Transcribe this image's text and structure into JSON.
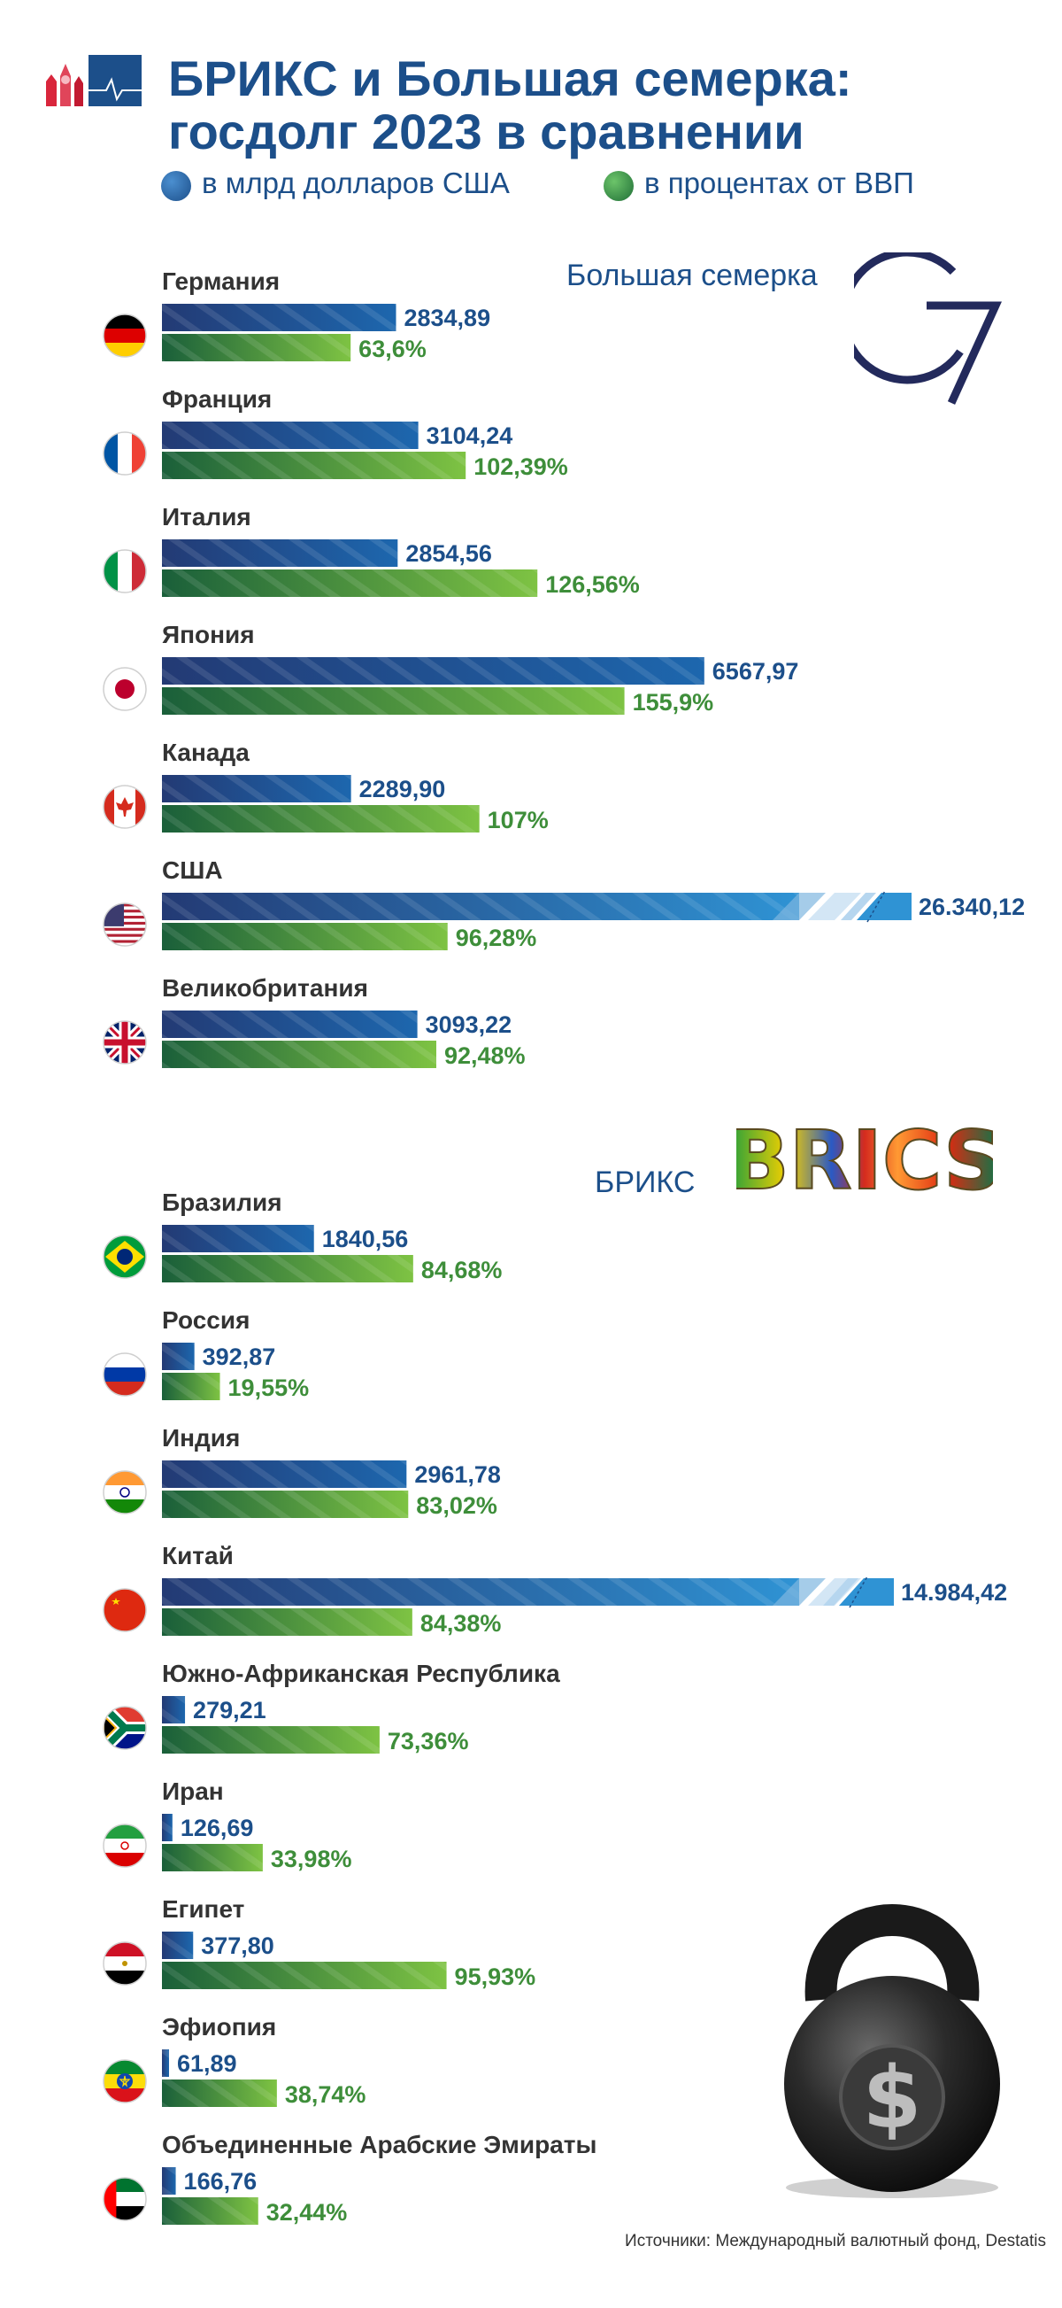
{
  "header": {
    "title_line1": "БРИКС и Большая семерка:",
    "title_line2": "госдолг 2023 в сравнении"
  },
  "legend": {
    "usd": {
      "label": "в млрд долларов США",
      "color": "#1c4f8a"
    },
    "gdp": {
      "label": "в процентах от ВВП",
      "color": "#2e8c3c"
    }
  },
  "sections": {
    "g7_label": "Большая семерка",
    "brics_label": "БРИКС",
    "brics_logo_text": "BRICS"
  },
  "source": "Источники: Международный валютный фонд, Destatis",
  "chart_data": {
    "type": "bar",
    "series": [
      {
        "name": "в млрд долларов США",
        "color": "#1c4f8a"
      },
      {
        "name": "в процентах от ВВП",
        "color": "#2e8c3c"
      }
    ],
    "groups": [
      {
        "name": "Большая семерка",
        "countries": [
          {
            "name": "Германия",
            "usd": 2834.89,
            "usd_label": "2834,89",
            "gdp": 63.6,
            "gdp_label": "63,6%",
            "flag": "germany-flag"
          },
          {
            "name": "Франция",
            "usd": 3104.24,
            "usd_label": "3104,24",
            "gdp": 102.39,
            "gdp_label": "102,39%",
            "flag": "france-flag"
          },
          {
            "name": "Италия",
            "usd": 2854.56,
            "usd_label": "2854,56",
            "gdp": 126.56,
            "gdp_label": "126,56%",
            "flag": "italy-flag"
          },
          {
            "name": "Япония",
            "usd": 6567.97,
            "usd_label": "6567,97",
            "gdp": 155.9,
            "gdp_label": "155,9%",
            "flag": "japan-flag"
          },
          {
            "name": "Канада",
            "usd": 2289.9,
            "usd_label": "2289,90",
            "gdp": 107,
            "gdp_label": "107%",
            "flag": "canada-flag"
          },
          {
            "name": "США",
            "usd": 26340.12,
            "usd_label": "26.340,12",
            "gdp": 96.28,
            "gdp_label": "96,28%",
            "flag": "usa-flag",
            "broken": true
          },
          {
            "name": "Великобритания",
            "usd": 3093.22,
            "usd_label": "3093,22",
            "gdp": 92.48,
            "gdp_label": "92,48%",
            "flag": "uk-flag"
          }
        ]
      },
      {
        "name": "БРИКС",
        "countries": [
          {
            "name": "Бразилия",
            "usd": 1840.56,
            "usd_label": "1840,56",
            "gdp": 84.68,
            "gdp_label": "84,68%",
            "flag": "brazil-flag"
          },
          {
            "name": "Россия",
            "usd": 392.87,
            "usd_label": "392,87",
            "gdp": 19.55,
            "gdp_label": "19,55%",
            "flag": "russia-flag"
          },
          {
            "name": "Индия",
            "usd": 2961.78,
            "usd_label": "2961,78",
            "gdp": 83.02,
            "gdp_label": "83,02%",
            "flag": "india-flag"
          },
          {
            "name": "Китай",
            "usd": 14984.42,
            "usd_label": "14.984,42",
            "gdp": 84.38,
            "gdp_label": "84,38%",
            "flag": "china-flag",
            "broken": true
          },
          {
            "name": "Южно-Африканская Республика",
            "usd": 279.21,
            "usd_label": "279,21",
            "gdp": 73.36,
            "gdp_label": "73,36%",
            "flag": "south-africa-flag"
          },
          {
            "name": "Иран",
            "usd": 126.69,
            "usd_label": "126,69",
            "gdp": 33.98,
            "gdp_label": "33,98%",
            "flag": "iran-flag"
          },
          {
            "name": "Египет",
            "usd": 377.8,
            "usd_label": "377,80",
            "gdp": 95.93,
            "gdp_label": "95,93%",
            "flag": "egypt-flag"
          },
          {
            "name": "Эфиопия",
            "usd": 61.89,
            "usd_label": "61,89",
            "gdp": 38.74,
            "gdp_label": "38,74%",
            "flag": "ethiopia-flag"
          },
          {
            "name": "Объединенные Арабские Эмираты",
            "usd": 166.76,
            "usd_label": "166,76",
            "gdp": 32.44,
            "gdp_label": "32,44%",
            "flag": "uae-flag"
          }
        ]
      }
    ]
  }
}
